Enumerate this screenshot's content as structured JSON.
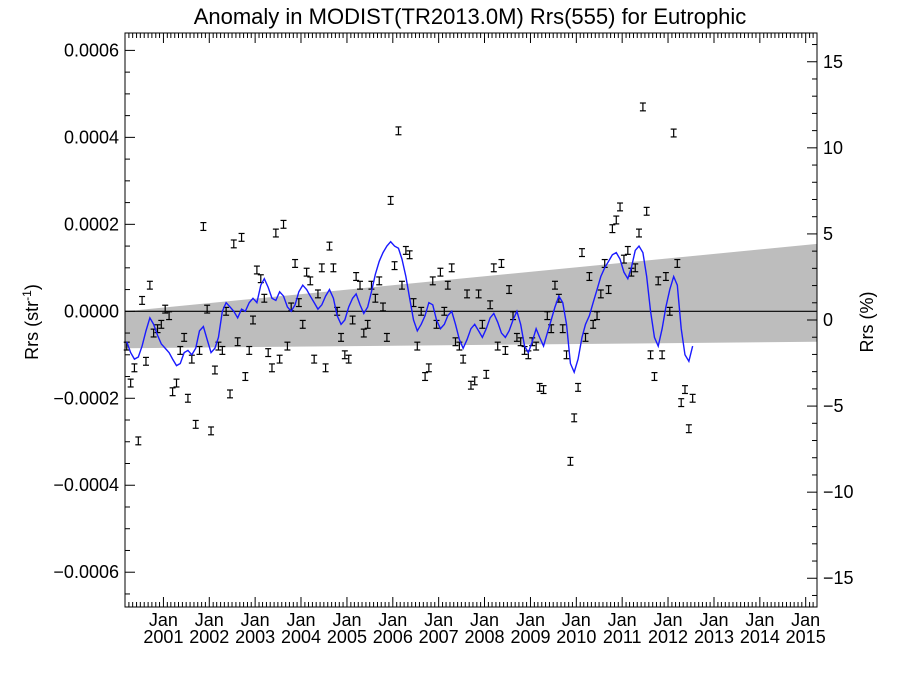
{
  "chart_data": {
    "type": "line",
    "title": "Anomaly in MODIST(TR2013.0M) Rrs(555) for Eutrophic",
    "ylabel_left": "Rrs (str",
    "ylabel_left_sup": "-1",
    "ylabel_left_close": ")",
    "ylabel_right": "Rrs (%)",
    "left_ylim": [
      -0.00068,
      0.00064
    ],
    "right_ylim": [
      -16.67,
      16.67
    ],
    "xlim": [
      "2000-03-01",
      "2015-04-01"
    ],
    "left_ticks": [
      {
        "v": 0.0006,
        "label": "0.0006"
      },
      {
        "v": 0.0004,
        "label": "0.0004"
      },
      {
        "v": 0.0002,
        "label": "0.0002"
      },
      {
        "v": 0.0,
        "label": "0.0000"
      },
      {
        "v": -0.0002,
        "label": "−0.0002"
      },
      {
        "v": -0.0004,
        "label": "−0.0004"
      },
      {
        "v": -0.0006,
        "label": "−0.0006"
      }
    ],
    "right_ticks": [
      {
        "v": 15,
        "label": "15"
      },
      {
        "v": 10,
        "label": "10"
      },
      {
        "v": 5,
        "label": "5"
      },
      {
        "v": 0,
        "label": "0"
      },
      {
        "v": -5,
        "label": "−5"
      },
      {
        "v": -10,
        "label": "−10"
      },
      {
        "v": -15,
        "label": "−15"
      }
    ],
    "x_ticks": [
      {
        "date": "2001-01",
        "month": "Jan",
        "year": "2001"
      },
      {
        "date": "2002-01",
        "month": "Jan",
        "year": "2002"
      },
      {
        "date": "2003-01",
        "month": "Jan",
        "year": "2003"
      },
      {
        "date": "2004-01",
        "month": "Jan",
        "year": "2004"
      },
      {
        "date": "2005-01",
        "month": "Jan",
        "year": "2005"
      },
      {
        "date": "2006-01",
        "month": "Jan",
        "year": "2006"
      },
      {
        "date": "2007-01",
        "month": "Jan",
        "year": "2007"
      },
      {
        "date": "2008-01",
        "month": "Jan",
        "year": "2008"
      },
      {
        "date": "2009-01",
        "month": "Jan",
        "year": "2009"
      },
      {
        "date": "2010-01",
        "month": "Jan",
        "year": "2010"
      },
      {
        "date": "2011-01",
        "month": "Jan",
        "year": "2011"
      },
      {
        "date": "2012-01",
        "month": "Jan",
        "year": "2012"
      },
      {
        "date": "2013-01",
        "month": "Jan",
        "year": "2013"
      },
      {
        "date": "2014-01",
        "month": "Jan",
        "year": "2014"
      },
      {
        "date": "2015-01",
        "month": "Jan",
        "year": "2015"
      }
    ],
    "trend_band": {
      "start_date": "2000-03-01",
      "end_date": "2015-04-01",
      "upper": [
        0.0,
        0.000155
      ],
      "lower": [
        -8.5e-05,
        -7e-05
      ]
    },
    "error_bar_halfwidth": 9e-06,
    "monthly_anomaly": [
      -8e-05,
      -0.000165,
      -0.00013,
      -0.000298,
      2.5e-05,
      -0.000115,
      6e-05,
      -5e-05,
      -4e-05,
      -3e-05,
      5e-06,
      -1e-05,
      -0.000185,
      -0.000165,
      -9e-05,
      -6e-05,
      -0.0002,
      -0.00011,
      -0.00026,
      -9e-05,
      0.000195,
      5e-06,
      -0.000275,
      -0.000135,
      -8e-05,
      -9e-05,
      0.0,
      -0.00019,
      0.000155,
      -7e-05,
      0.00017,
      -0.00015,
      -9e-05,
      -2e-05,
      9.5e-05,
      7.5e-05,
      3e-05,
      -9.5e-05,
      -0.00013,
      0.00018,
      -0.00011,
      0.0002,
      -8e-05,
      1e-05,
      0.00011,
      2e-05,
      -3e-05,
      9e-05,
      7e-05,
      -0.00011,
      4e-05,
      0.0001,
      -0.00013,
      0.00015,
      0.0001,
      0.0,
      -6e-05,
      -0.0001,
      -0.00011,
      -2e-05,
      8e-05,
      6e-05,
      -5e-05,
      -3e-05,
      6e-05,
      3e-05,
      7e-05,
      1e-05,
      -6e-05,
      0.000255,
      0.000105,
      0.000415,
      6e-05,
      0.00014,
      0.00013,
      2e-05,
      -8e-05,
      0.0,
      -0.00015,
      -0.00013,
      7e-05,
      -3e-05,
      9e-05,
      0.0,
      6e-05,
      0.0001,
      -7e-05,
      -8e-05,
      -0.00011,
      4e-05,
      -0.00017,
      -0.00016,
      4e-05,
      -3e-05,
      -0.000145,
      1.5e-05,
      0.0001,
      -8e-05,
      0.00011,
      -9e-05,
      5e-05,
      -1e-05,
      -6e-05,
      -7e-05,
      -9e-05,
      -0.0001,
      -7e-05,
      -8e-05,
      -0.000175,
      -0.00018,
      -1e-05,
      -4e-05,
      6e-05,
      3e-05,
      -4e-05,
      -0.0001,
      -0.000345,
      -0.000245,
      -0.000175,
      0.000135,
      -6e-05,
      8e-05,
      -3e-05,
      -1e-05,
      4e-05,
      0.00011,
      5e-05,
      0.00019,
      0.00021,
      0.00024,
      0.00012,
      0.00014,
      9e-05,
      0.0001,
      0.00018,
      0.00047,
      0.00023,
      -0.0001,
      -0.00015,
      7e-05,
      -0.0001,
      8e-05,
      0.0,
      0.00041,
      0.00011,
      -0.00021,
      -0.00018,
      -0.00027,
      -0.0002
    ],
    "running_mean": [
      -7e-05,
      -9.5e-05,
      -0.00011,
      -0.000105,
      -8e-05,
      -4.5e-05,
      -1.5e-05,
      -3e-05,
      -5.5e-05,
      -7.5e-05,
      -8.5e-05,
      -9.5e-05,
      -0.00011,
      -0.000125,
      -0.00012,
      -9.5e-05,
      -9e-05,
      -0.0001,
      -8.5e-05,
      -4.5e-05,
      -3.5e-05,
      -6.5e-05,
      -9.5e-05,
      -8.5e-05,
      -6e-05,
      0.0,
      2e-05,
      1e-05,
      0.0,
      -1.5e-05,
      5e-06,
      0.0,
      2e-05,
      3e-05,
      2e-05,
      6e-05,
      7.5e-05,
      5.5e-05,
      3e-05,
      2.5e-05,
      4.5e-05,
      3.5e-05,
      1e-05,
      0.0,
      1.5e-05,
      4.5e-05,
      6e-05,
      5e-05,
      3.5e-05,
      2e-05,
      5e-06,
      1.5e-05,
      3.5e-05,
      5e-05,
      3e-05,
      -1e-05,
      -3e-05,
      -2e-05,
      1e-05,
      3e-05,
      4e-05,
      1.5e-05,
      -5e-06,
      1e-05,
      4.5e-05,
      8.5e-05,
      0.000115,
      0.000135,
      0.00015,
      0.00016,
      0.00015,
      0.000145,
      0.00012,
      8e-05,
      3e-05,
      -2e-05,
      -4.5e-05,
      -3e-05,
      -1e-05,
      2e-05,
      1.5e-05,
      -2e-05,
      -4e-05,
      -3e-05,
      -1e-05,
      0.0,
      -3e-05,
      -6.5e-05,
      -8.5e-05,
      -6.5e-05,
      -4e-05,
      -3e-05,
      -4.5e-05,
      -6e-05,
      -4e-05,
      -1.5e-05,
      -5e-06,
      -2.5e-05,
      -5e-05,
      -6e-05,
      -4.5e-05,
      -2e-05,
      0.0,
      -3e-05,
      -8e-05,
      -9.5e-05,
      -7e-05,
      -4e-05,
      -6e-05,
      -8e-05,
      -5e-05,
      -2e-05,
      1e-05,
      3.5e-05,
      2e-05,
      -3e-05,
      -0.00012,
      -0.00014,
      -0.00011,
      -6e-05,
      -3e-05,
      -1e-05,
      2e-05,
      5e-05,
      8e-05,
      0.0001,
      0.000115,
      0.00013,
      0.000135,
      0.00012,
      9e-05,
      7.5e-05,
      0.0001,
      0.00014,
      0.00015,
      0.000135,
      8e-05,
      0.0,
      -6e-05,
      -8e-05,
      -4e-05,
      1e-05,
      5e-05,
      8e-05,
      6e-05,
      -4e-05,
      -0.0001,
      -0.000115,
      -8e-05
    ],
    "colors": {
      "running_mean": "#1a1aff",
      "band": "#bdbdbd",
      "points": "#000000",
      "zero_line": "#000000"
    },
    "grid": false
  }
}
